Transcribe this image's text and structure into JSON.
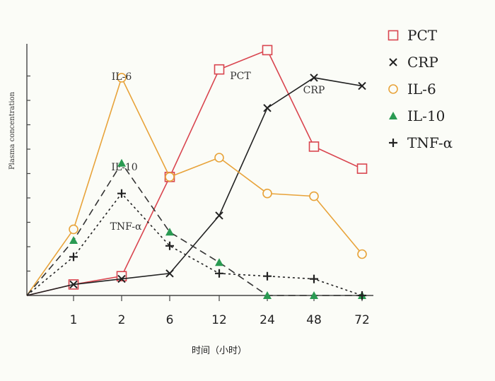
{
  "chart_data": {
    "type": "line",
    "xlabel": "时间（小时）",
    "ylabel": "Plasma concentration",
    "categories": [
      "1",
      "2",
      "6",
      "12",
      "24",
      "48",
      "72"
    ],
    "grid": false,
    "legend_position": "right",
    "series": [
      {
        "name": "PCT",
        "color": "#d9454f",
        "marker": "square-open",
        "dash": "solid",
        "values": [
          0.04,
          0.07,
          0.43,
          0.82,
          0.89,
          0.54,
          0.46
        ]
      },
      {
        "name": "CRP",
        "color": "#222222",
        "marker": "x",
        "dash": "solid",
        "values": [
          0.04,
          0.06,
          0.08,
          0.29,
          0.68,
          0.79,
          0.76
        ]
      },
      {
        "name": "IL-6",
        "color": "#e8a33a",
        "marker": "circle-open",
        "dash": "solid",
        "values": [
          0.24,
          0.79,
          0.43,
          0.5,
          0.37,
          0.36,
          0.15
        ]
      },
      {
        "name": "IL-10",
        "color": "#2a9a52",
        "marker": "triangle",
        "dash": "dashed",
        "line_color": "#333333",
        "values": [
          0.2,
          0.48,
          0.23,
          0.12,
          0.0,
          0.0,
          0.0
        ]
      },
      {
        "name": "TNF-α",
        "color": "#222222",
        "marker": "plus",
        "dash": "dotted",
        "values": [
          0.14,
          0.37,
          0.18,
          0.08,
          0.07,
          0.06,
          0.0
        ]
      }
    ],
    "annotations": [
      "IL-6",
      "PCT",
      "CRP",
      "IL-10",
      "TNF-α"
    ]
  }
}
